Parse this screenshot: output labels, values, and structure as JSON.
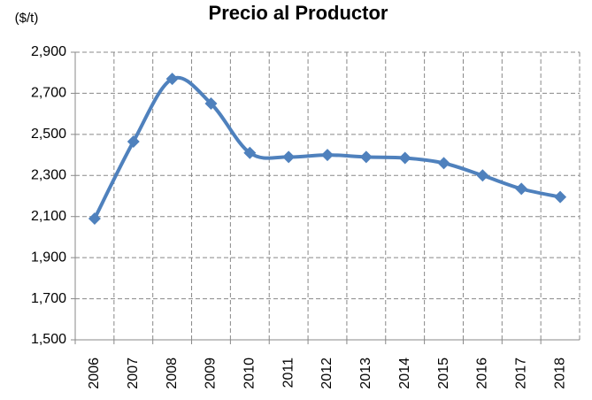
{
  "chart_data": {
    "type": "line",
    "title": "Precio al Productor",
    "ylabel": "($/t)",
    "categories": [
      "2006",
      "2007",
      "2008",
      "2009",
      "2010",
      "2011",
      "2012",
      "2013",
      "2014",
      "2015",
      "2016",
      "2017",
      "2018"
    ],
    "series": [
      {
        "name": "Precio al Productor",
        "color": "#4f81bd",
        "values": [
          2090,
          2465,
          2770,
          2650,
          2410,
          2390,
          2400,
          2390,
          2385,
          2360,
          2300,
          2235,
          2195
        ]
      }
    ],
    "ylim": [
      1500,
      2900
    ],
    "yticks": [
      {
        "value": 1500,
        "label": "1,500"
      },
      {
        "value": 1700,
        "label": "1,700"
      },
      {
        "value": 1900,
        "label": "1,900"
      },
      {
        "value": 2100,
        "label": "2,100"
      },
      {
        "value": 2300,
        "label": "2,300"
      },
      {
        "value": 2500,
        "label": "2,500"
      },
      {
        "value": 2700,
        "label": "2,700"
      },
      {
        "value": 2900,
        "label": "2,900"
      }
    ],
    "grid": true,
    "smooth": true
  }
}
